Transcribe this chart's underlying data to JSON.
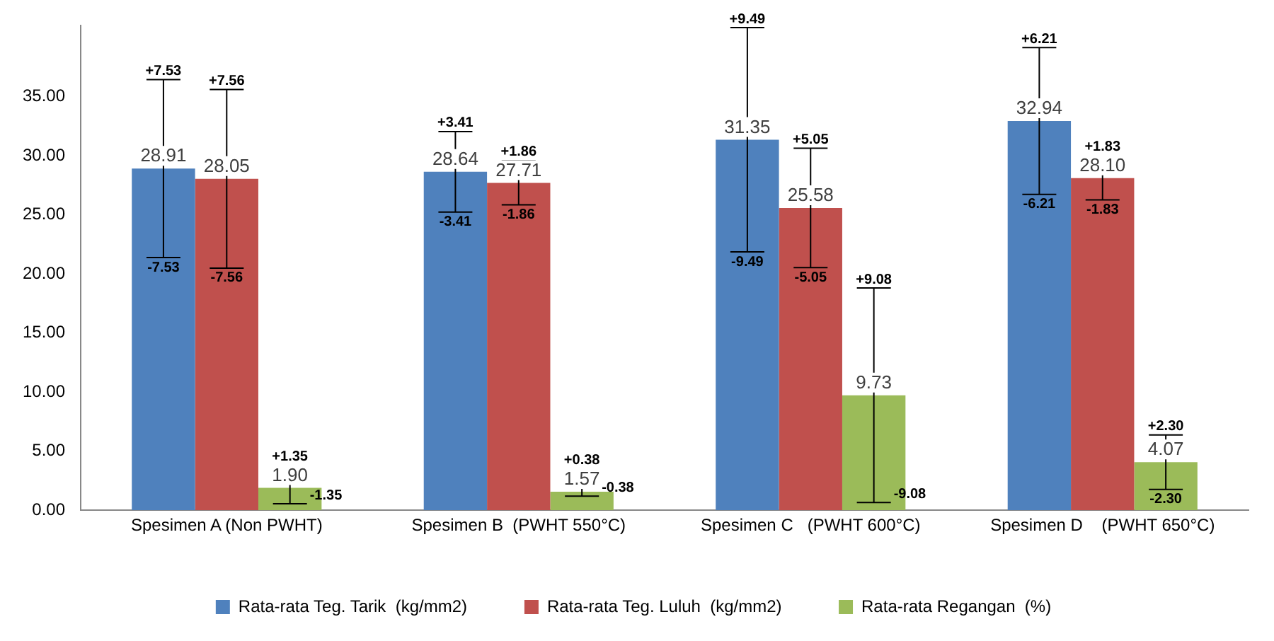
{
  "chart_data": {
    "type": "bar",
    "categories": [
      "Spesimen A (Non PWHT)",
      "Spesimen B  (PWHT 550°C)",
      "Spesimen C   (PWHT 600°C)",
      "Spesimen D    (PWHT 650°C)"
    ],
    "series": [
      {
        "name": "Rata-rata Teg. Tarik  (kg/mm2)",
        "color": "#4f81bd",
        "values": [
          28.91,
          28.64,
          31.35,
          32.94
        ],
        "errors": [
          7.53,
          3.41,
          9.49,
          6.21
        ],
        "value_labels": [
          "28.91",
          "28.64",
          "31.35",
          "32.94"
        ]
      },
      {
        "name": "Rata-rata Teg. Luluh  (kg/mm2)",
        "color": "#c0504d",
        "values": [
          28.05,
          27.71,
          25.58,
          28.1
        ],
        "errors": [
          7.56,
          1.86,
          5.05,
          1.83
        ],
        "value_labels": [
          "28.05",
          "27.71",
          "25.58",
          "28.10"
        ]
      },
      {
        "name": "Rata-rata Regangan  (%)",
        "color": "#9bbb59",
        "values": [
          1.9,
          1.57,
          9.73,
          4.07
        ],
        "errors": [
          1.35,
          0.38,
          9.08,
          2.3
        ],
        "value_labels": [
          "1.90",
          "1.57",
          "9.73",
          "4.07"
        ]
      }
    ],
    "ylim": [
      0,
      41
    ],
    "yticks": [
      {
        "value": 0,
        "label": "0.00"
      },
      {
        "value": 5,
        "label": "5.00"
      },
      {
        "value": 10,
        "label": "10.00"
      },
      {
        "value": 15,
        "label": "15.00"
      },
      {
        "value": 20,
        "label": "20.00"
      },
      {
        "value": 25,
        "label": "25.00"
      },
      {
        "value": 30,
        "label": "30.00"
      },
      {
        "value": 35,
        "label": "35.00"
      }
    ],
    "grid": false,
    "legend": "bottom",
    "annotations": [
      "+7.53",
      "-7.53",
      "+3.41",
      "-3.41",
      "+9.49",
      "-9.49",
      "+6.21",
      "-6.21",
      "+7.56",
      "-7.56",
      "+1.86",
      "-1.86",
      "+5.05",
      "-5.05",
      "+1.83",
      "-1.83",
      "+1.35",
      "-1.35",
      "+0.38",
      "-0.38",
      "+9.08",
      "-9.08",
      "+2.30",
      "-2.30"
    ]
  }
}
